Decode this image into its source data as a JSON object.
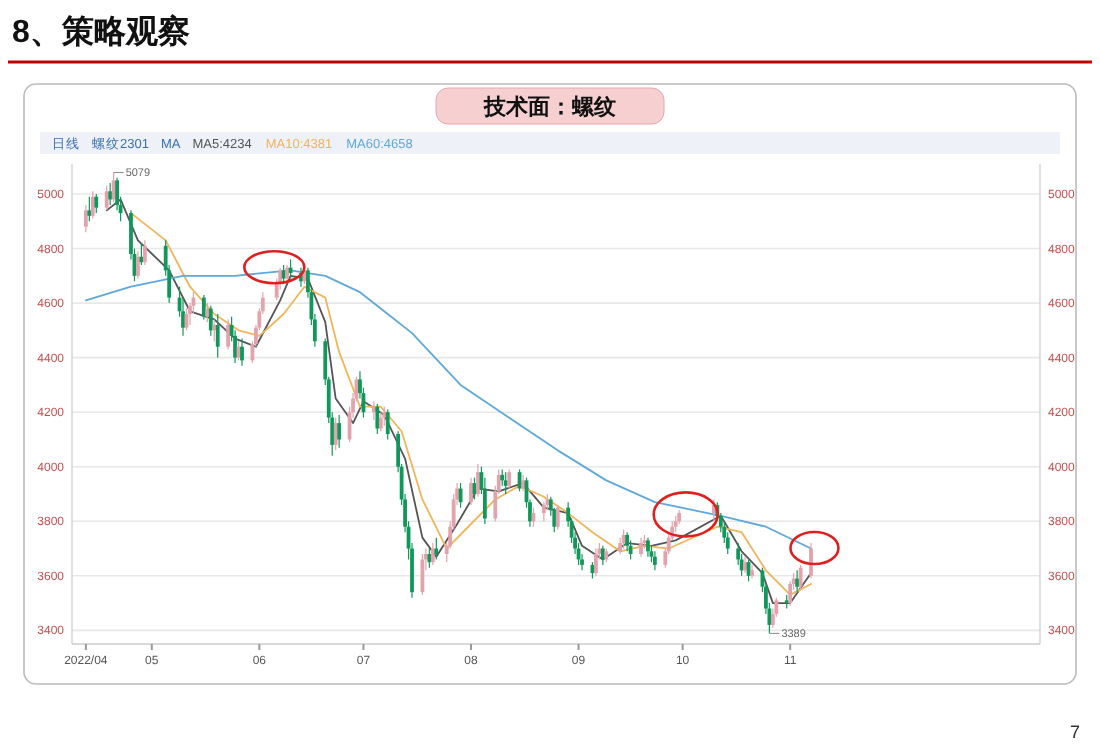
{
  "chart_data": {
    "type": "candlestick",
    "title": "8、策略观察",
    "subtitle": "技术面：螺纹",
    "x": [
      "2022-04-12",
      "2022-04-13",
      "2022-04-14",
      "2022-04-15",
      "2022-04-18",
      "2022-04-19",
      "2022-04-20",
      "2022-04-21",
      "2022-04-22",
      "2022-04-25",
      "2022-04-26",
      "2022-04-27",
      "2022-04-28",
      "2022-04-29",
      "2022-05-05",
      "2022-05-06",
      "2022-05-09",
      "2022-05-10",
      "2022-05-11",
      "2022-05-12",
      "2022-05-13",
      "2022-05-16",
      "2022-05-17",
      "2022-05-18",
      "2022-05-19",
      "2022-05-20",
      "2022-05-23",
      "2022-05-24",
      "2022-05-25",
      "2022-05-26",
      "2022-05-27",
      "2022-05-30",
      "2022-05-31",
      "2022-06-01",
      "2022-06-02",
      "2022-06-06",
      "2022-06-07",
      "2022-06-08",
      "2022-06-09",
      "2022-06-10",
      "2022-06-13",
      "2022-06-14",
      "2022-06-15",
      "2022-06-16",
      "2022-06-17",
      "2022-06-20",
      "2022-06-21",
      "2022-06-22",
      "2022-06-23",
      "2022-06-24",
      "2022-06-27",
      "2022-06-28",
      "2022-06-29",
      "2022-06-30",
      "2022-07-01",
      "2022-07-04",
      "2022-07-05",
      "2022-07-06",
      "2022-07-07",
      "2022-07-08",
      "2022-07-11",
      "2022-07-12",
      "2022-07-13",
      "2022-07-14",
      "2022-07-15",
      "2022-07-18",
      "2022-07-19",
      "2022-07-20",
      "2022-07-21",
      "2022-07-22",
      "2022-07-25",
      "2022-07-26",
      "2022-07-27",
      "2022-07-28",
      "2022-07-29",
      "2022-08-01",
      "2022-08-02",
      "2022-08-03",
      "2022-08-04",
      "2022-08-05",
      "2022-08-08",
      "2022-08-09",
      "2022-08-10",
      "2022-08-11",
      "2022-08-12",
      "2022-08-15",
      "2022-08-16",
      "2022-08-17",
      "2022-08-18",
      "2022-08-19",
      "2022-08-22",
      "2022-08-23",
      "2022-08-24",
      "2022-08-25",
      "2022-08-26",
      "2022-08-29",
      "2022-08-30",
      "2022-08-31",
      "2022-09-01",
      "2022-09-02",
      "2022-09-05",
      "2022-09-06",
      "2022-09-07",
      "2022-09-08",
      "2022-09-09",
      "2022-09-13",
      "2022-09-14",
      "2022-09-15",
      "2022-09-16",
      "2022-09-19",
      "2022-09-20",
      "2022-09-21",
      "2022-09-22",
      "2022-09-23",
      "2022-09-26",
      "2022-09-27",
      "2022-09-28",
      "2022-09-29",
      "2022-09-30",
      "2022-10-10",
      "2022-10-11",
      "2022-10-12",
      "2022-10-13",
      "2022-10-14",
      "2022-10-17",
      "2022-10-18",
      "2022-10-19",
      "2022-10-20",
      "2022-10-21",
      "2022-10-24",
      "2022-10-25",
      "2022-10-26",
      "2022-10-27",
      "2022-10-28",
      "2022-10-31",
      "2022-11-01",
      "2022-11-02",
      "2022-11-03",
      "2022-11-04",
      "2022-11-07"
    ],
    "ohlc": [
      [
        4880,
        4960,
        4860,
        4940
      ],
      [
        4940,
        4990,
        4900,
        4920
      ],
      [
        4920,
        5010,
        4910,
        4990
      ],
      [
        4990,
        5000,
        4930,
        4950
      ],
      [
        4950,
        5030,
        4940,
        5010
      ],
      [
        5010,
        5040,
        4960,
        4980
      ],
      [
        4980,
        5079,
        4970,
        5050
      ],
      [
        5050,
        5060,
        4940,
        4960
      ],
      [
        4960,
        4990,
        4900,
        4930
      ],
      [
        4930,
        4940,
        4760,
        4780
      ],
      [
        4780,
        4800,
        4680,
        4700
      ],
      [
        4700,
        4790,
        4690,
        4770
      ],
      [
        4770,
        4820,
        4740,
        4750
      ],
      [
        4750,
        4830,
        4740,
        4810
      ],
      [
        4810,
        4830,
        4700,
        4720
      ],
      [
        4720,
        4740,
        4600,
        4620
      ],
      [
        4620,
        4660,
        4550,
        4570
      ],
      [
        4570,
        4620,
        4480,
        4510
      ],
      [
        4510,
        4580,
        4500,
        4560
      ],
      [
        4560,
        4600,
        4520,
        4590
      ],
      [
        4590,
        4640,
        4560,
        4620
      ],
      [
        4620,
        4630,
        4540,
        4550
      ],
      [
        4550,
        4600,
        4530,
        4580
      ],
      [
        4580,
        4590,
        4480,
        4500
      ],
      [
        4500,
        4540,
        4460,
        4520
      ],
      [
        4520,
        4560,
        4400,
        4440
      ],
      [
        4440,
        4540,
        4430,
        4520
      ],
      [
        4520,
        4550,
        4460,
        4480
      ],
      [
        4480,
        4500,
        4380,
        4400
      ],
      [
        4400,
        4460,
        4390,
        4440
      ],
      [
        4440,
        4470,
        4370,
        4390
      ],
      [
        4390,
        4460,
        4380,
        4450
      ],
      [
        4450,
        4520,
        4440,
        4510
      ],
      [
        4510,
        4580,
        4500,
        4570
      ],
      [
        4570,
        4640,
        4560,
        4620
      ],
      [
        4620,
        4690,
        4610,
        4670
      ],
      [
        4670,
        4730,
        4650,
        4720
      ],
      [
        4720,
        4740,
        4670,
        4690
      ],
      [
        4690,
        4740,
        4680,
        4730
      ],
      [
        4730,
        4760,
        4690,
        4710
      ],
      [
        4710,
        4730,
        4660,
        4680
      ],
      [
        4680,
        4740,
        4670,
        4720
      ],
      [
        4720,
        4730,
        4620,
        4640
      ],
      [
        4640,
        4650,
        4520,
        4540
      ],
      [
        4540,
        4560,
        4440,
        4460
      ],
      [
        4460,
        4470,
        4300,
        4320
      ],
      [
        4320,
        4330,
        4160,
        4180
      ],
      [
        4180,
        4200,
        4040,
        4080
      ],
      [
        4080,
        4180,
        4060,
        4160
      ],
      [
        4160,
        4190,
        4070,
        4100
      ],
      [
        4100,
        4220,
        4090,
        4200
      ],
      [
        4200,
        4270,
        4180,
        4250
      ],
      [
        4250,
        4330,
        4240,
        4320
      ],
      [
        4320,
        4350,
        4250,
        4270
      ],
      [
        4270,
        4290,
        4180,
        4200
      ],
      [
        4200,
        4240,
        4170,
        4220
      ],
      [
        4220,
        4230,
        4120,
        4140
      ],
      [
        4140,
        4200,
        4130,
        4180
      ],
      [
        4180,
        4220,
        4150,
        4200
      ],
      [
        4200,
        4210,
        4100,
        4120
      ],
      [
        4120,
        4130,
        3980,
        4000
      ],
      [
        4000,
        4010,
        3860,
        3880
      ],
      [
        3880,
        3900,
        3760,
        3780
      ],
      [
        3780,
        3800,
        3660,
        3700
      ],
      [
        3700,
        3720,
        3520,
        3540
      ],
      [
        3540,
        3680,
        3530,
        3660
      ],
      [
        3660,
        3700,
        3620,
        3680
      ],
      [
        3680,
        3700,
        3630,
        3650
      ],
      [
        3650,
        3720,
        3640,
        3700
      ],
      [
        3700,
        3740,
        3660,
        3680
      ],
      [
        3680,
        3720,
        3650,
        3710
      ],
      [
        3710,
        3800,
        3700,
        3780
      ],
      [
        3780,
        3900,
        3770,
        3880
      ],
      [
        3880,
        3940,
        3860,
        3920
      ],
      [
        3920,
        3940,
        3850,
        3870
      ],
      [
        3870,
        3960,
        3860,
        3940
      ],
      [
        3940,
        3960,
        3880,
        3900
      ],
      [
        3900,
        4010,
        3890,
        3980
      ],
      [
        3980,
        4000,
        3900,
        3920
      ],
      [
        3920,
        3960,
        3790,
        3810
      ],
      [
        3810,
        3930,
        3800,
        3910
      ],
      [
        3910,
        3990,
        3900,
        3970
      ],
      [
        3970,
        3990,
        3930,
        3950
      ],
      [
        3950,
        3980,
        3900,
        3930
      ],
      [
        3930,
        3990,
        3920,
        3980
      ],
      [
        3980,
        3990,
        3910,
        3920
      ],
      [
        3920,
        3970,
        3910,
        3950
      ],
      [
        3950,
        3960,
        3850,
        3870
      ],
      [
        3870,
        3880,
        3780,
        3800
      ],
      [
        3800,
        3850,
        3780,
        3830
      ],
      [
        3830,
        3870,
        3800,
        3860
      ],
      [
        3860,
        3900,
        3840,
        3880
      ],
      [
        3880,
        3890,
        3820,
        3840
      ],
      [
        3840,
        3850,
        3760,
        3780
      ],
      [
        3780,
        3860,
        3770,
        3850
      ],
      [
        3850,
        3870,
        3780,
        3800
      ],
      [
        3800,
        3810,
        3720,
        3740
      ],
      [
        3740,
        3760,
        3680,
        3700
      ],
      [
        3700,
        3720,
        3640,
        3660
      ],
      [
        3660,
        3680,
        3620,
        3640
      ],
      [
        3640,
        3650,
        3590,
        3610
      ],
      [
        3610,
        3700,
        3600,
        3680
      ],
      [
        3680,
        3720,
        3660,
        3700
      ],
      [
        3700,
        3710,
        3640,
        3660
      ],
      [
        3660,
        3700,
        3650,
        3690
      ],
      [
        3690,
        3740,
        3680,
        3720
      ],
      [
        3720,
        3770,
        3700,
        3750
      ],
      [
        3750,
        3760,
        3690,
        3710
      ],
      [
        3710,
        3730,
        3660,
        3680
      ],
      [
        3680,
        3740,
        3670,
        3720
      ],
      [
        3720,
        3750,
        3700,
        3730
      ],
      [
        3730,
        3740,
        3670,
        3690
      ],
      [
        3690,
        3710,
        3650,
        3670
      ],
      [
        3670,
        3690,
        3620,
        3640
      ],
      [
        3640,
        3700,
        3630,
        3690
      ],
      [
        3690,
        3760,
        3680,
        3740
      ],
      [
        3740,
        3800,
        3730,
        3780
      ],
      [
        3780,
        3820,
        3760,
        3800
      ],
      [
        3800,
        3840,
        3790,
        3830
      ],
      [
        3830,
        3880,
        3800,
        3860
      ],
      [
        3860,
        3870,
        3800,
        3820
      ],
      [
        3820,
        3830,
        3760,
        3780
      ],
      [
        3780,
        3800,
        3720,
        3740
      ],
      [
        3740,
        3760,
        3680,
        3700
      ],
      [
        3700,
        3720,
        3640,
        3660
      ],
      [
        3660,
        3680,
        3600,
        3620
      ],
      [
        3620,
        3670,
        3610,
        3650
      ],
      [
        3650,
        3660,
        3580,
        3600
      ],
      [
        3600,
        3640,
        3590,
        3620
      ],
      [
        3620,
        3630,
        3540,
        3560
      ],
      [
        3560,
        3570,
        3460,
        3480
      ],
      [
        3480,
        3500,
        3389,
        3420
      ],
      [
        3420,
        3480,
        3410,
        3460
      ],
      [
        3460,
        3520,
        3450,
        3510
      ],
      [
        3510,
        3530,
        3480,
        3500
      ],
      [
        3500,
        3580,
        3490,
        3570
      ],
      [
        3570,
        3610,
        3550,
        3590
      ],
      [
        3590,
        3620,
        3540,
        3560
      ],
      [
        3560,
        3640,
        3550,
        3630
      ],
      [
        3600,
        3720,
        3590,
        3700
      ]
    ],
    "colors": [
      "#e3a3ad",
      "#10985a",
      "#e3a3ad",
      "#10985a",
      "#e3a3ad",
      "#10985a",
      "#e3a3ad",
      "#10985a",
      "#10985a",
      "#10985a",
      "#10985a",
      "#e3a3ad",
      "#10985a",
      "#e3a3ad",
      "#10985a",
      "#10985a",
      "#10985a",
      "#10985a",
      "#e3a3ad",
      "#e3a3ad",
      "#e3a3ad",
      "#10985a",
      "#e3a3ad",
      "#10985a",
      "#e3a3ad",
      "#10985a",
      "#e3a3ad",
      "#10985a",
      "#10985a",
      "#e3a3ad",
      "#10985a",
      "#e3a3ad",
      "#e3a3ad",
      "#e3a3ad",
      "#e3a3ad",
      "#e3a3ad",
      "#e3a3ad",
      "#10985a",
      "#e3a3ad",
      "#10985a",
      "#10985a",
      "#e3a3ad",
      "#10985a",
      "#10985a",
      "#10985a",
      "#10985a",
      "#10985a",
      "#10985a",
      "#e3a3ad",
      "#10985a",
      "#e3a3ad",
      "#e3a3ad",
      "#e3a3ad",
      "#10985a",
      "#10985a",
      "#e3a3ad",
      "#10985a",
      "#e3a3ad",
      "#e3a3ad",
      "#10985a",
      "#10985a",
      "#10985a",
      "#10985a",
      "#10985a",
      "#10985a",
      "#e3a3ad",
      "#e3a3ad",
      "#10985a",
      "#e3a3ad",
      "#10985a",
      "#e3a3ad",
      "#e3a3ad",
      "#e3a3ad",
      "#e3a3ad",
      "#10985a",
      "#e3a3ad",
      "#10985a",
      "#e3a3ad",
      "#10985a",
      "#10985a",
      "#e3a3ad",
      "#e3a3ad",
      "#10985a",
      "#10985a",
      "#e3a3ad",
      "#10985a",
      "#e3a3ad",
      "#10985a",
      "#10985a",
      "#e3a3ad",
      "#e3a3ad",
      "#e3a3ad",
      "#10985a",
      "#10985a",
      "#e3a3ad",
      "#10985a",
      "#10985a",
      "#10985a",
      "#10985a",
      "#10985a",
      "#10985a",
      "#e3a3ad",
      "#e3a3ad",
      "#10985a",
      "#e3a3ad",
      "#e3a3ad",
      "#e3a3ad",
      "#10985a",
      "#10985a",
      "#e3a3ad",
      "#e3a3ad",
      "#10985a",
      "#10985a",
      "#10985a",
      "#e3a3ad",
      "#e3a3ad",
      "#e3a3ad",
      "#e3a3ad",
      "#e3a3ad",
      "#e3a3ad",
      "#10985a",
      "#10985a",
      "#10985a",
      "#10985a",
      "#10985a",
      "#10985a",
      "#e3a3ad",
      "#10985a",
      "#e3a3ad",
      "#10985a",
      "#10985a",
      "#10985a",
      "#e3a3ad",
      "#e3a3ad",
      "#10985a",
      "#e3a3ad",
      "#e3a3ad",
      "#10985a",
      "#e3a3ad",
      "#e3a3ad"
    ],
    "series": [
      {
        "name": "MA5:4234",
        "type": "line",
        "color": "#555555",
        "x": [
          "2022-04-18",
          "2022-04-22",
          "2022-04-27",
          "2022-05-06",
          "2022-05-12",
          "2022-05-19",
          "2022-05-25",
          "2022-05-31",
          "2022-06-07",
          "2022-06-10",
          "2022-06-15",
          "2022-06-20",
          "2022-06-23",
          "2022-06-28",
          "2022-07-01",
          "2022-07-07",
          "2022-07-13",
          "2022-07-18",
          "2022-07-22",
          "2022-07-28",
          "2022-08-03",
          "2022-08-09",
          "2022-08-16",
          "2022-08-22",
          "2022-08-29",
          "2022-09-02",
          "2022-09-08",
          "2022-09-15",
          "2022-09-22",
          "2022-09-29",
          "2022-10-12",
          "2022-10-18",
          "2022-10-24",
          "2022-10-27",
          "2022-11-01",
          "2022-11-07"
        ],
        "values": [
          4940,
          4980,
          4830,
          4720,
          4570,
          4540,
          4470,
          4440,
          4610,
          4700,
          4690,
          4530,
          4250,
          4160,
          4240,
          4190,
          4030,
          3740,
          3670,
          3790,
          3920,
          3910,
          3940,
          3850,
          3830,
          3710,
          3660,
          3720,
          3710,
          3730,
          3820,
          3690,
          3610,
          3500,
          3500,
          3610
        ]
      },
      {
        "name": "MA10:4381",
        "type": "line",
        "color": "#f0b55a",
        "x": [
          "2022-04-25",
          "2022-05-05",
          "2022-05-12",
          "2022-05-19",
          "2022-05-26",
          "2022-06-01",
          "2022-06-08",
          "2022-06-14",
          "2022-06-20",
          "2022-06-24",
          "2022-06-30",
          "2022-07-06",
          "2022-07-12",
          "2022-07-18",
          "2022-07-25",
          "2022-08-01",
          "2022-08-08",
          "2022-08-15",
          "2022-08-22",
          "2022-08-29",
          "2022-09-05",
          "2022-09-13",
          "2022-09-20",
          "2022-09-27",
          "2022-10-11",
          "2022-10-18",
          "2022-10-25",
          "2022-11-01",
          "2022-11-07"
        ],
        "values": [
          4930,
          4830,
          4660,
          4560,
          4500,
          4480,
          4560,
          4660,
          4620,
          4420,
          4220,
          4220,
          4130,
          3880,
          3700,
          3790,
          3880,
          3930,
          3890,
          3830,
          3760,
          3690,
          3710,
          3700,
          3780,
          3760,
          3620,
          3530,
          3570
        ]
      },
      {
        "name": "MA60:4658",
        "type": "line",
        "color": "#5fa8d8",
        "x": [
          "2022-04-12",
          "2022-04-25",
          "2022-05-10",
          "2022-05-25",
          "2022-06-10",
          "2022-06-20",
          "2022-06-30",
          "2022-07-08",
          "2022-07-15",
          "2022-07-29",
          "2022-08-12",
          "2022-08-26",
          "2022-09-09",
          "2022-09-23",
          "2022-10-12",
          "2022-10-25",
          "2022-11-07"
        ],
        "values": [
          4610,
          4660,
          4700,
          4700,
          4720,
          4700,
          4640,
          4560,
          4490,
          4300,
          4180,
          4060,
          3950,
          3870,
          3820,
          3780,
          3700
        ]
      }
    ],
    "xlim": [
      "2022-04-08",
      "2023-01-12"
    ],
    "xticks": [
      {
        "value": "2022-04-12",
        "label": "2022/04"
      },
      {
        "value": "2022-05-01",
        "label": "05"
      },
      {
        "value": "2022-06-01",
        "label": "06"
      },
      {
        "value": "2022-07-01",
        "label": "07"
      },
      {
        "value": "2022-08-01",
        "label": "08"
      },
      {
        "value": "2022-09-01",
        "label": "09"
      },
      {
        "value": "2022-10-01",
        "label": "10"
      },
      {
        "value": "2022-11-01",
        "label": "11"
      }
    ],
    "ylim": [
      3350,
      5110
    ],
    "yticks": [
      3400,
      3600,
      3800,
      4000,
      4200,
      4400,
      4600,
      4800,
      5000
    ],
    "y2lim": [
      3350,
      5110
    ],
    "y2ticks": [
      3400,
      3600,
      3800,
      4000,
      4200,
      4400,
      4600,
      4800,
      5000
    ],
    "grid": "y",
    "legend": "top left",
    "annotations": [
      "日线",
      "螺纹2301",
      "MA",
      {
        "text": "5079",
        "x": "2022-04-20",
        "y": 5079
      },
      {
        "text": "3389",
        "x": "2022-10-26",
        "y": 3389
      },
      "7"
    ]
  }
}
